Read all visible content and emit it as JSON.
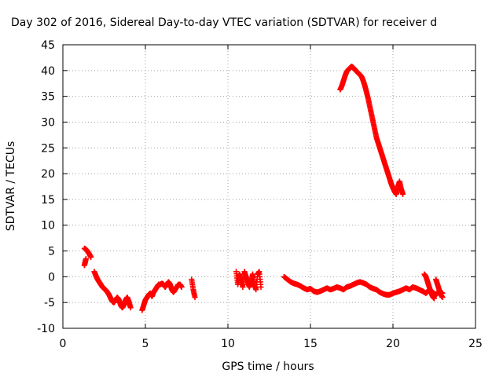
{
  "chart_data": {
    "type": "scatter",
    "title": "Day 302 of 2016, Sidereal Day-to-day VTEC variation (SDTVAR) for receiver d",
    "xlabel": "GPS time / hours",
    "ylabel": "SDTVAR / TECUs",
    "xlim": [
      0,
      25
    ],
    "ylim": [
      -10,
      45
    ],
    "xticks": [
      0,
      5,
      10,
      15,
      20,
      25
    ],
    "yticks": [
      -10,
      -5,
      0,
      5,
      10,
      15,
      20,
      25,
      30,
      35,
      40,
      45
    ],
    "grid": true,
    "marker": "+",
    "color": "#ff0000",
    "series": [
      {
        "name": "SDTVAR",
        "segments": [
          {
            "x": [
              1.3,
              1.4,
              1.5,
              1.6,
              1.7
            ],
            "y": [
              5.5,
              5.3,
              4.9,
              4.4,
              3.8
            ]
          },
          {
            "x": [
              1.3,
              1.35,
              1.4
            ],
            "y": [
              2.2,
              2.8,
              3.5
            ]
          },
          {
            "x": [
              1.9,
              2.0,
              2.1,
              2.2,
              2.3,
              2.4,
              2.5,
              2.6,
              2.7,
              2.8,
              2.9,
              3.0,
              3.1,
              3.2,
              3.3,
              3.4,
              3.5,
              3.6,
              3.7,
              3.8,
              3.9,
              4.0,
              4.1
            ],
            "y": [
              1.0,
              0.2,
              -0.5,
              -1.0,
              -1.5,
              -2.0,
              -2.3,
              -2.6,
              -3.0,
              -3.5,
              -4.2,
              -4.8,
              -5.0,
              -4.5,
              -4.0,
              -4.5,
              -5.5,
              -6.0,
              -5.5,
              -4.5,
              -4.0,
              -4.8,
              -6.0
            ]
          },
          {
            "x": [
              4.8,
              4.9,
              5.0,
              5.1,
              5.2,
              5.3,
              5.4,
              5.5,
              5.6,
              5.7,
              5.8,
              5.9,
              6.0,
              6.1,
              6.2,
              6.3,
              6.4,
              6.5,
              6.6,
              6.7,
              6.8,
              6.9,
              7.0,
              7.1,
              7.2
            ],
            "y": [
              -6.5,
              -5.5,
              -4.5,
              -4.0,
              -3.5,
              -3.2,
              -3.8,
              -3.0,
              -2.5,
              -2.0,
              -1.5,
              -1.5,
              -1.3,
              -1.5,
              -2.0,
              -1.5,
              -1.0,
              -1.5,
              -2.5,
              -3.0,
              -2.5,
              -2.0,
              -1.5,
              -1.5,
              -2.0
            ]
          },
          {
            "x": [
              7.8,
              7.9,
              8.0
            ],
            "y": [
              -0.5,
              -2.5,
              -4.0
            ]
          },
          {
            "x": [
              10.5,
              10.6,
              10.7,
              10.8,
              10.9,
              11.0,
              11.1,
              11.2,
              11.3,
              11.4,
              11.5,
              11.6,
              11.7,
              11.8,
              11.9,
              12.0
            ],
            "y": [
              1.0,
              -1.5,
              0.5,
              -0.5,
              -2.0,
              1.0,
              0.0,
              -1.0,
              -2.0,
              -1.0,
              0.5,
              -1.5,
              -2.5,
              0.5,
              1.0,
              -2.0
            ]
          },
          {
            "x": [
              13.4,
              13.6,
              13.8,
              14.0,
              14.2,
              14.4,
              14.6,
              14.8,
              15.0,
              15.2,
              15.4,
              15.6,
              15.8,
              16.0,
              16.2,
              16.4,
              16.6,
              16.8,
              17.0,
              17.2,
              17.4,
              17.6,
              17.8,
              18.0,
              18.2,
              18.4,
              18.6,
              18.8,
              19.0,
              19.2,
              19.4,
              19.6,
              19.8,
              20.0,
              20.2,
              20.4,
              20.6,
              20.8,
              21.0,
              21.2,
              21.4,
              21.6,
              21.8,
              22.0,
              22.2,
              22.4,
              22.6,
              22.8,
              23.0
            ],
            "y": [
              0.0,
              -0.5,
              -1.0,
              -1.3,
              -1.5,
              -1.8,
              -2.2,
              -2.5,
              -2.3,
              -2.8,
              -3.0,
              -2.8,
              -2.5,
              -2.2,
              -2.5,
              -2.3,
              -2.0,
              -2.2,
              -2.5,
              -2.0,
              -1.8,
              -1.5,
              -1.2,
              -1.0,
              -1.2,
              -1.5,
              -2.0,
              -2.3,
              -2.5,
              -3.0,
              -3.3,
              -3.5,
              -3.5,
              -3.2,
              -3.0,
              -2.8,
              -2.5,
              -2.2,
              -2.5,
              -2.0,
              -2.2,
              -2.5,
              -2.8,
              -3.2,
              -2.5,
              -3.0,
              -3.5,
              -2.8,
              -3.2
            ]
          },
          {
            "x": [
              21.9,
              22.0,
              22.1,
              22.2,
              22.3,
              22.4,
              22.5
            ],
            "y": [
              0.5,
              0.0,
              -1.0,
              -2.0,
              -3.0,
              -3.8,
              -4.2
            ]
          },
          {
            "x": [
              22.6,
              22.7,
              22.8,
              22.9,
              23.0
            ],
            "y": [
              -0.5,
              -1.5,
              -2.5,
              -3.5,
              -4.0
            ]
          },
          {
            "x": [
              16.8,
              16.9,
              17.0,
              17.1,
              17.2,
              17.3,
              17.4,
              17.5,
              17.6,
              17.7,
              17.8,
              17.9,
              18.0,
              18.1,
              18.2,
              18.3,
              18.4,
              18.5,
              18.6,
              18.7,
              18.8,
              18.9,
              19.0,
              19.1,
              19.2,
              19.3,
              19.4,
              19.5,
              19.6,
              19.7,
              19.8,
              19.9,
              20.0,
              20.1,
              20.2,
              20.3,
              20.4,
              20.5,
              20.6
            ],
            "y": [
              36.3,
              37.0,
              38.0,
              39.0,
              39.8,
              40.2,
              40.5,
              40.8,
              40.5,
              40.2,
              39.8,
              39.5,
              39.2,
              38.8,
              38.0,
              37.0,
              35.8,
              34.5,
              33.0,
              31.5,
              30.0,
              28.5,
              27.0,
              26.0,
              25.0,
              24.0,
              23.0,
              22.0,
              21.0,
              20.0,
              19.0,
              18.0,
              17.2,
              16.5,
              16.0,
              17.5,
              18.5,
              17.0,
              16.0
            ]
          }
        ]
      }
    ]
  }
}
